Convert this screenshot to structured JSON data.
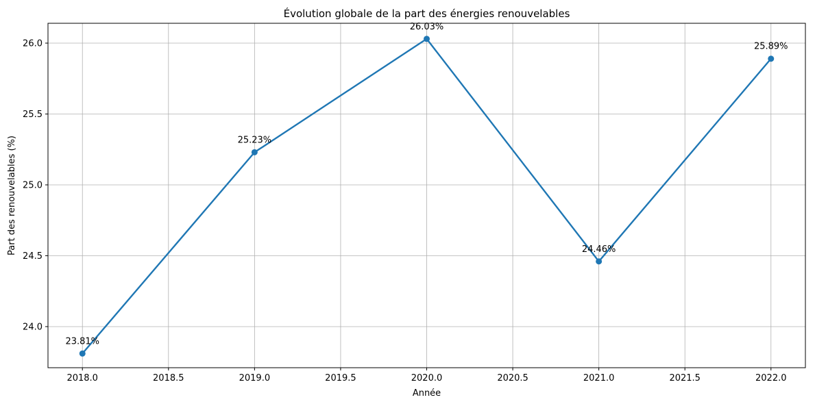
{
  "chart_data": {
    "type": "line",
    "title": "Évolution globale de la part des énergies renouvelables",
    "xlabel": "Année",
    "ylabel": "Part des renouvelables (%)",
    "xlim": [
      2017.8,
      2022.2
    ],
    "ylim": [
      23.71,
      26.14
    ],
    "xticks": [
      2018.0,
      2018.5,
      2019.0,
      2019.5,
      2020.0,
      2020.5,
      2021.0,
      2021.5,
      2022.0
    ],
    "xtick_labels": [
      "2018.0",
      "2018.5",
      "2019.0",
      "2019.5",
      "2020.0",
      "2020.5",
      "2021.0",
      "2021.5",
      "2022.0"
    ],
    "yticks": [
      24.0,
      24.5,
      25.0,
      25.5,
      26.0
    ],
    "ytick_labels": [
      "24.0",
      "24.5",
      "25.0",
      "25.5",
      "26.0"
    ],
    "grid": true,
    "color": "#1f77b4",
    "series": [
      {
        "x": [
          2018,
          2019,
          2020,
          2021,
          2022
        ],
        "y": [
          23.81,
          25.23,
          26.03,
          24.46,
          25.89
        ],
        "labels": [
          "23.81%",
          "25.23%",
          "26.03%",
          "24.46%",
          "25.89%"
        ]
      }
    ]
  }
}
